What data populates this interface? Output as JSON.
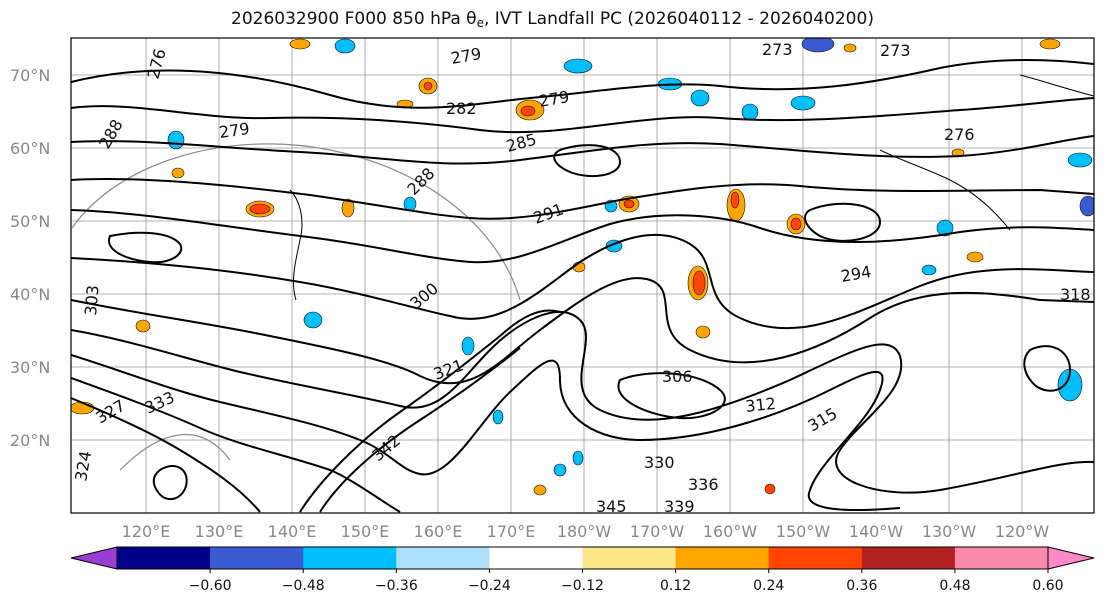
{
  "title": {
    "prefix": "2026032900 F000 850 hPa θ",
    "subscript": "e",
    "suffix": ", IVT Landfall PC (2026040112 - 2026040200)"
  },
  "lat_labels": [
    "70°N",
    "60°N",
    "50°N",
    "40°N",
    "30°N",
    "20°N"
  ],
  "lon_labels": [
    "120°E",
    "130°E",
    "140°E",
    "150°E",
    "160°E",
    "170°E",
    "180°W",
    "170°W",
    "160°W",
    "150°W",
    "140°W",
    "130°W",
    "120°W"
  ],
  "colorbar": {
    "ticks": [
      "−0.60",
      "−0.48",
      "−0.36",
      "−0.24",
      "−0.12",
      "0.12",
      "0.24",
      "0.36",
      "0.48",
      "0.60"
    ],
    "colors": [
      "#9a3dd2",
      "#00008b",
      "#3a5bd0",
      "#00bfff",
      "#ade0fa",
      "#ffffff",
      "#fde68a",
      "#ffa500",
      "#ff4500",
      "#b22222",
      "#f88aac",
      "#ff88c8"
    ]
  },
  "contour_labels": [
    "276",
    "279",
    "273",
    "273",
    "282",
    "279",
    "288",
    "279",
    "285",
    "276",
    "288",
    "291",
    "294",
    "300",
    "303",
    "306",
    "312",
    "315",
    "318",
    "321",
    "324",
    "327",
    "330",
    "333",
    "336",
    "339",
    "342",
    "345"
  ]
}
